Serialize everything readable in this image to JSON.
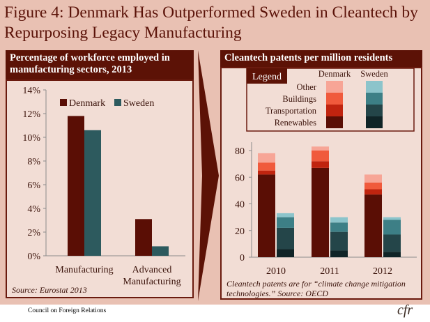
{
  "title": "Figure 4:  Denmark Has Outperformed Sweden in Cleantech by Repurposing Legacy Manufacturing",
  "left_panel": {
    "header": "Percentage of workforce employed in manufacturing sectors, 2013",
    "source": "Source: Eurostat 2013"
  },
  "right_panel": {
    "header": "Cleantech patents per million residents",
    "legend_title": "Legend",
    "legend_col_denmark": "Denmark",
    "legend_col_sweden": "Sweden",
    "legend_rows": [
      "Other",
      "Buildings",
      "Transportation",
      "Renewables"
    ],
    "note": "Cleantech patents are for “climate change mitigation technologies.” Source: OECD"
  },
  "footer": {
    "org": "Council on Foreign Relations",
    "logo": "cfr"
  },
  "colors": {
    "denmark": "#5a0e05",
    "sweden": "#2d5a5e",
    "dk_renewables": "#5a0e05",
    "dk_transportation": "#c0240f",
    "dk_buildings": "#f05a3c",
    "dk_other": "#f7a596",
    "se_renewables": "#102427",
    "se_transportation": "#244549",
    "se_buildings": "#3d7f86",
    "se_other": "#8cc4cb"
  },
  "chart_data": [
    {
      "type": "bar",
      "categories": [
        "Manufacturing",
        "Advanced\nManufacturing"
      ],
      "series": [
        {
          "name": "Denmark",
          "values": [
            11.8,
            3.1
          ]
        },
        {
          "name": "Sweden",
          "values": [
            10.6,
            0.8
          ]
        }
      ],
      "ylim": [
        0,
        14
      ],
      "yticks": [
        "0%",
        "2%",
        "4%",
        "6%",
        "8%",
        "10%",
        "12%",
        "14%"
      ],
      "legend": "top-left"
    },
    {
      "type": "bar",
      "stacked": true,
      "categories": [
        "2010",
        "2011",
        "2012"
      ],
      "groups": [
        "Denmark",
        "Sweden"
      ],
      "segments": [
        "Renewables",
        "Transportation",
        "Buildings",
        "Other"
      ],
      "values": {
        "Denmark": {
          "Renewables": [
            62,
            67,
            47
          ],
          "Transportation": [
            3,
            5,
            4
          ],
          "Buildings": [
            6,
            8,
            5
          ],
          "Other": [
            7,
            3,
            6
          ]
        },
        "Sweden": {
          "Renewables": [
            6,
            5,
            4
          ],
          "Transportation": [
            16,
            14,
            13
          ],
          "Buildings": [
            8,
            7,
            11
          ],
          "Other": [
            3,
            4,
            2
          ]
        }
      },
      "ylim": [
        0,
        85
      ],
      "yticks": [
        "0",
        "20",
        "40",
        "60",
        "80"
      ],
      "legend": "top"
    }
  ]
}
